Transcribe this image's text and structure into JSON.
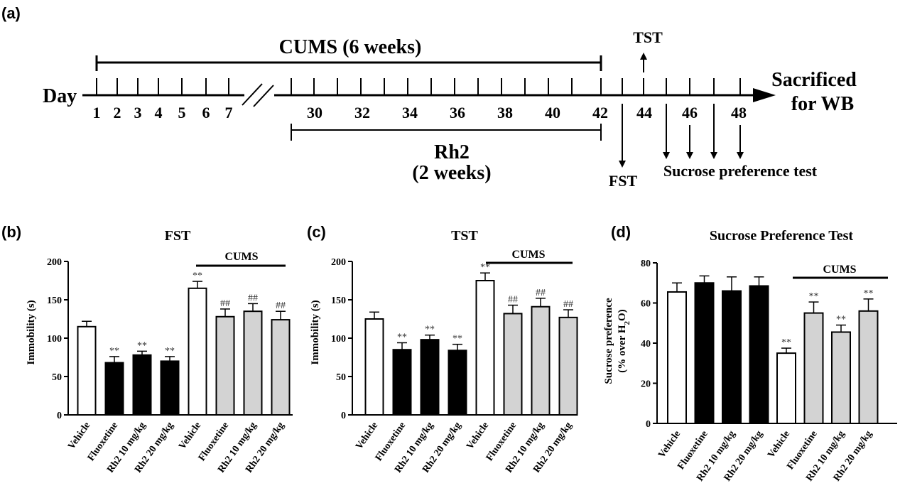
{
  "panel_labels": [
    "(a)",
    "(b)",
    "(c)",
    "(d)"
  ],
  "timeline": {
    "day_label": "Day",
    "cums_label": "CUMS (6 weeks)",
    "rh2_label_line1": "Rh2",
    "rh2_label_line2": "(2 weeks)",
    "early_days": [
      "1",
      "2",
      "3",
      "4",
      "5",
      "6",
      "7"
    ],
    "late_days": [
      "30",
      "32",
      "34",
      "36",
      "38",
      "40",
      "42",
      "44",
      "46",
      "48"
    ],
    "tst_label": "TST",
    "fst_label": "FST",
    "sucrose_label": "Sucrose preference test",
    "end_label_line1": "Sacrificed",
    "end_label_line2": "for WB"
  },
  "chart_data": [
    {
      "type": "bar",
      "title": "FST",
      "ylabel": "Immobility (s)",
      "ylim": [
        0,
        200
      ],
      "yticks": [
        "0",
        "50",
        "100",
        "150",
        "200"
      ],
      "categories": [
        "Vehicle",
        "Fluoxetine",
        "Rh2 10 mg/kg",
        "Rh2 20 mg/kg",
        "Vehicle",
        "Fluoxetine",
        "Rh2 10 mg/kg",
        "Rh2 20 mg/kg"
      ],
      "values": [
        115,
        68,
        78,
        70,
        165,
        128,
        135,
        124
      ],
      "errors": [
        7,
        8,
        5,
        6,
        9,
        10,
        10,
        11
      ],
      "fills": [
        "white",
        "black",
        "black",
        "black",
        "white",
        "grey",
        "grey",
        "grey"
      ],
      "significance": [
        "",
        "**",
        "**",
        "**",
        "**",
        "##",
        "##",
        "##"
      ],
      "group_label": "CUMS"
    },
    {
      "type": "bar",
      "title": "TST",
      "ylabel": "Immobility (s)",
      "ylim": [
        0,
        200
      ],
      "yticks": [
        "0",
        "50",
        "100",
        "150",
        "200"
      ],
      "categories": [
        "Vehicle",
        "Fluoxetine",
        "Rh2 10 mg/kg",
        "Rh2 20 mg/kg",
        "Vehicle",
        "Fluoxetine",
        "Rh2 10 mg/kg",
        "Rh2 20 mg/kg"
      ],
      "values": [
        125,
        85,
        98,
        84,
        175,
        132,
        141,
        127
      ],
      "errors": [
        9,
        9,
        6,
        8,
        10,
        11,
        11,
        10
      ],
      "fills": [
        "white",
        "black",
        "black",
        "black",
        "white",
        "grey",
        "grey",
        "grey"
      ],
      "significance": [
        "",
        "**",
        "**",
        "**",
        "**",
        "##",
        "##",
        "##"
      ],
      "group_label": "CUMS"
    },
    {
      "type": "bar",
      "title": "Sucrose Preference Test",
      "ylabel_line1": "Sucrose preference",
      "ylabel_line2_pre": "(% over H",
      "ylabel_line2_sub": "2",
      "ylabel_line2_post": "O)",
      "ylim": [
        0,
        80
      ],
      "yticks": [
        "0",
        "20",
        "40",
        "60",
        "80"
      ],
      "categories": [
        "Vehicle",
        "Fluoxetine",
        "Rh2 10 mg/kg",
        "Rh2 20 mg/kg",
        "Vehicle",
        "Fluoxetine",
        "Rh2 10 mg/kg",
        "Rh2 20 mg/kg"
      ],
      "values": [
        65.5,
        70,
        66,
        68.5,
        35,
        55,
        45.5,
        56
      ],
      "errors": [
        4.5,
        3.5,
        7,
        4.5,
        2.5,
        5.5,
        3.5,
        6
      ],
      "fills": [
        "white",
        "black",
        "black",
        "black",
        "white",
        "grey",
        "grey",
        "grey"
      ],
      "significance": [
        "",
        "",
        "",
        "",
        "**",
        "**",
        "**",
        "**"
      ],
      "group_label": "CUMS"
    }
  ]
}
